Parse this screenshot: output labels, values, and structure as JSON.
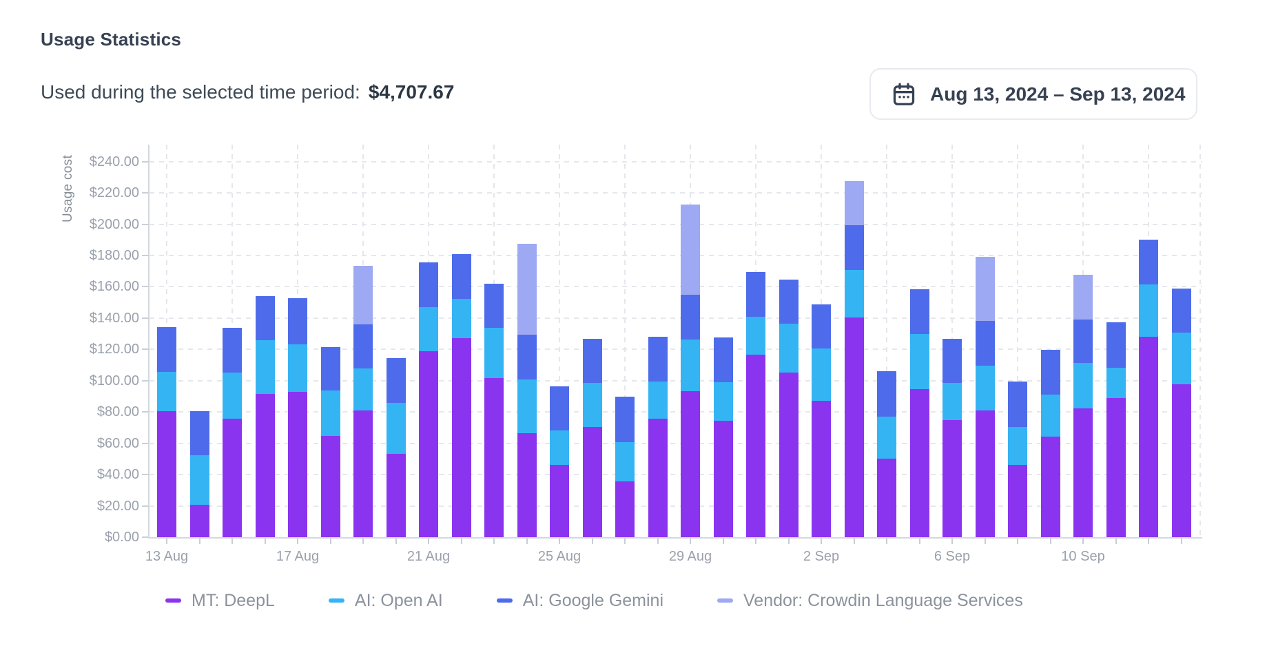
{
  "header": {
    "title": "Usage Statistics",
    "subtitle_label": "Used during the selected time period:",
    "subtitle_value": "$4,707.67"
  },
  "date_picker": {
    "icon": "calendar-icon",
    "label": "Aug 13, 2024 – Sep 13, 2024"
  },
  "chart_data": {
    "type": "bar",
    "stacked": true,
    "ylabel": "Usage cost",
    "ylim": [
      0,
      250
    ],
    "ytick_step": 20,
    "grid": true,
    "legend_position": "bottom",
    "ytick_labels": [
      "$0.00",
      "$20.00",
      "$40.00",
      "$60.00",
      "$80.00",
      "$100.00",
      "$120.00",
      "$140.00",
      "$160.00",
      "$180.00",
      "$200.00",
      "$220.00",
      "$240.00"
    ],
    "categories": [
      "13 Aug",
      "14 Aug",
      "15 Aug",
      "16 Aug",
      "17 Aug",
      "18 Aug",
      "19 Aug",
      "20 Aug",
      "21 Aug",
      "22 Aug",
      "23 Aug",
      "24 Aug",
      "25 Aug",
      "26 Aug",
      "27 Aug",
      "28 Aug",
      "29 Aug",
      "30 Aug",
      "31 Aug",
      "1 Sep",
      "2 Sep",
      "3 Sep",
      "4 Sep",
      "5 Sep",
      "6 Sep",
      "7 Sep",
      "8 Sep",
      "9 Sep",
      "10 Sep",
      "11 Sep",
      "12 Sep",
      "13 Sep"
    ],
    "xtick_indices": [
      0,
      4,
      8,
      12,
      16,
      20,
      24,
      28
    ],
    "xtick_labels": [
      "13 Aug",
      "17 Aug",
      "21 Aug",
      "25 Aug",
      "29 Aug",
      "2 Sep",
      "6 Sep",
      "10 Sep"
    ],
    "series": [
      {
        "name": "MT: DeepL",
        "color": "#8A34F0",
        "values": [
          80.6,
          20.8,
          75.9,
          91.4,
          93.0,
          64.5,
          80.9,
          53.1,
          118.7,
          127.0,
          101.8,
          66.4,
          46.0,
          70.3,
          35.8,
          75.8,
          93.1,
          74.2,
          116.5,
          105.3,
          87.3,
          140.2,
          50.2,
          94.7,
          74.7,
          80.8,
          46.0,
          64.4,
          82.1,
          88.8,
          128.0,
          97.8
        ]
      },
      {
        "name": "AI: Open AI",
        "color": "#35B4F4",
        "values": [
          25.2,
          31.6,
          29.4,
          34.6,
          30.1,
          29.3,
          26.8,
          32.6,
          28.3,
          25.4,
          31.8,
          34.5,
          22.0,
          28.3,
          25.1,
          23.5,
          33.0,
          24.7,
          24.2,
          31.0,
          33.3,
          30.6,
          26.9,
          35.0,
          23.9,
          28.8,
          24.6,
          26.6,
          29.4,
          19.5,
          33.7,
          33.0
        ]
      },
      {
        "name": "AI: Google Gemini",
        "color": "#4E6BEB",
        "values": [
          28.6,
          28.2,
          28.5,
          27.8,
          29.7,
          27.8,
          28.3,
          28.9,
          28.5,
          28.3,
          28.3,
          28.3,
          28.2,
          28.0,
          29.0,
          28.8,
          29.0,
          28.7,
          28.8,
          28.2,
          28.2,
          28.6,
          28.9,
          28.5,
          28.0,
          28.6,
          28.8,
          28.8,
          27.4,
          29.2,
          28.3,
          28.2
        ]
      },
      {
        "name": "Vendor: Crowdin Language Services",
        "color": "#9DA9F2",
        "values": [
          0,
          0,
          0,
          0,
          0,
          0,
          37.2,
          0,
          0,
          0,
          0,
          58.1,
          0,
          0,
          0,
          0,
          57.6,
          0,
          0,
          0,
          0,
          28.2,
          0,
          0,
          0,
          40.8,
          0,
          0,
          28.7,
          0,
          0,
          0
        ]
      }
    ]
  }
}
